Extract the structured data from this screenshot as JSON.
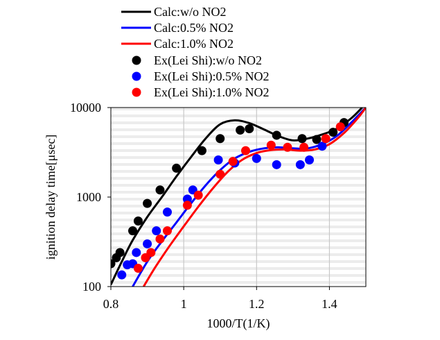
{
  "chart_data": {
    "type": "line",
    "xlabel": "1000/T(1/K)",
    "ylabel": "ignition delay time[μsec]",
    "xlim": [
      0.8,
      1.5
    ],
    "ylim": [
      100,
      10000
    ],
    "y_scale": "log",
    "x_ticks": [
      {
        "value": 0.8,
        "label": "0.8"
      },
      {
        "value": 1.0,
        "label": "1"
      },
      {
        "value": 1.2,
        "label": "1.2"
      },
      {
        "value": 1.4,
        "label": "1.4"
      }
    ],
    "y_ticks": [
      {
        "value": 100,
        "label": "100"
      },
      {
        "value": 1000,
        "label": "1000"
      },
      {
        "value": 10000,
        "label": "10000"
      }
    ],
    "grid": "horizontal bands and vertical gridlines",
    "legend_position": "top",
    "series": [
      {
        "name": "Calc:w/o NO2",
        "kind": "line",
        "color": "#000000",
        "x": [
          0.8,
          0.83,
          0.86,
          0.9,
          0.94,
          0.98,
          1.02,
          1.06,
          1.1,
          1.14,
          1.18,
          1.22,
          1.26,
          1.3,
          1.34,
          1.38,
          1.42,
          1.46,
          1.49
        ],
        "y": [
          105,
          190,
          330,
          600,
          1000,
          1700,
          2800,
          4500,
          6500,
          7200,
          6700,
          5700,
          4800,
          4300,
          4500,
          5000,
          5800,
          7600,
          10000
        ]
      },
      {
        "name": "Calc:0.5% NO2",
        "kind": "line",
        "color": "#0000ff",
        "x": [
          0.86,
          0.9,
          0.94,
          0.98,
          1.02,
          1.06,
          1.1,
          1.14,
          1.18,
          1.22,
          1.26,
          1.3,
          1.34,
          1.38,
          1.42,
          1.46,
          1.5
        ],
        "y": [
          100,
          190,
          320,
          520,
          850,
          1350,
          2000,
          2700,
          3200,
          3500,
          3600,
          3500,
          3500,
          3900,
          4800,
          6800,
          10000
        ]
      },
      {
        "name": "Calc:1.0% NO2",
        "kind": "line",
        "color": "#ff0000",
        "x": [
          0.89,
          0.92,
          0.96,
          1.0,
          1.04,
          1.08,
          1.12,
          1.16,
          1.2,
          1.24,
          1.28,
          1.32,
          1.36,
          1.4,
          1.44,
          1.48,
          1.5
        ],
        "y": [
          100,
          160,
          280,
          470,
          780,
          1250,
          1900,
          2600,
          3100,
          3350,
          3400,
          3300,
          3400,
          3900,
          5200,
          7800,
          10000
        ]
      },
      {
        "name": "Ex(Lei Shi):w/o NO2",
        "kind": "scatter",
        "color": "#000000",
        "x": [
          0.8,
          0.815,
          0.825,
          0.86,
          0.875,
          0.9,
          0.935,
          0.98,
          1.05,
          1.1,
          1.155,
          1.18,
          1.255,
          1.325,
          1.365,
          1.41,
          1.44
        ],
        "y": [
          180,
          210,
          240,
          420,
          540,
          850,
          1200,
          2100,
          3300,
          4500,
          5600,
          5800,
          4900,
          4500,
          4400,
          5300,
          6800
        ]
      },
      {
        "name": "Ex(Lei Shi):0.5% NO2",
        "kind": "scatter",
        "color": "#0000ff",
        "x": [
          0.83,
          0.845,
          0.86,
          0.87,
          0.9,
          0.925,
          0.955,
          1.01,
          1.025,
          1.095,
          1.14,
          1.2,
          1.255,
          1.32,
          1.345,
          1.38
        ],
        "y": [
          135,
          175,
          180,
          240,
          300,
          420,
          680,
          950,
          1200,
          2600,
          2400,
          2700,
          2300,
          2300,
          2600,
          3700
        ]
      },
      {
        "name": "Ex(Lei Shi):1.0% NO2",
        "kind": "scatter",
        "color": "#ff0000",
        "x": [
          0.875,
          0.895,
          0.91,
          0.935,
          0.955,
          1.01,
          1.04,
          1.1,
          1.135,
          1.17,
          1.24,
          1.285,
          1.33,
          1.39,
          1.43
        ],
        "y": [
          160,
          210,
          240,
          340,
          420,
          810,
          1050,
          1800,
          2500,
          3300,
          3800,
          3600,
          3600,
          4500,
          6100
        ]
      }
    ]
  }
}
